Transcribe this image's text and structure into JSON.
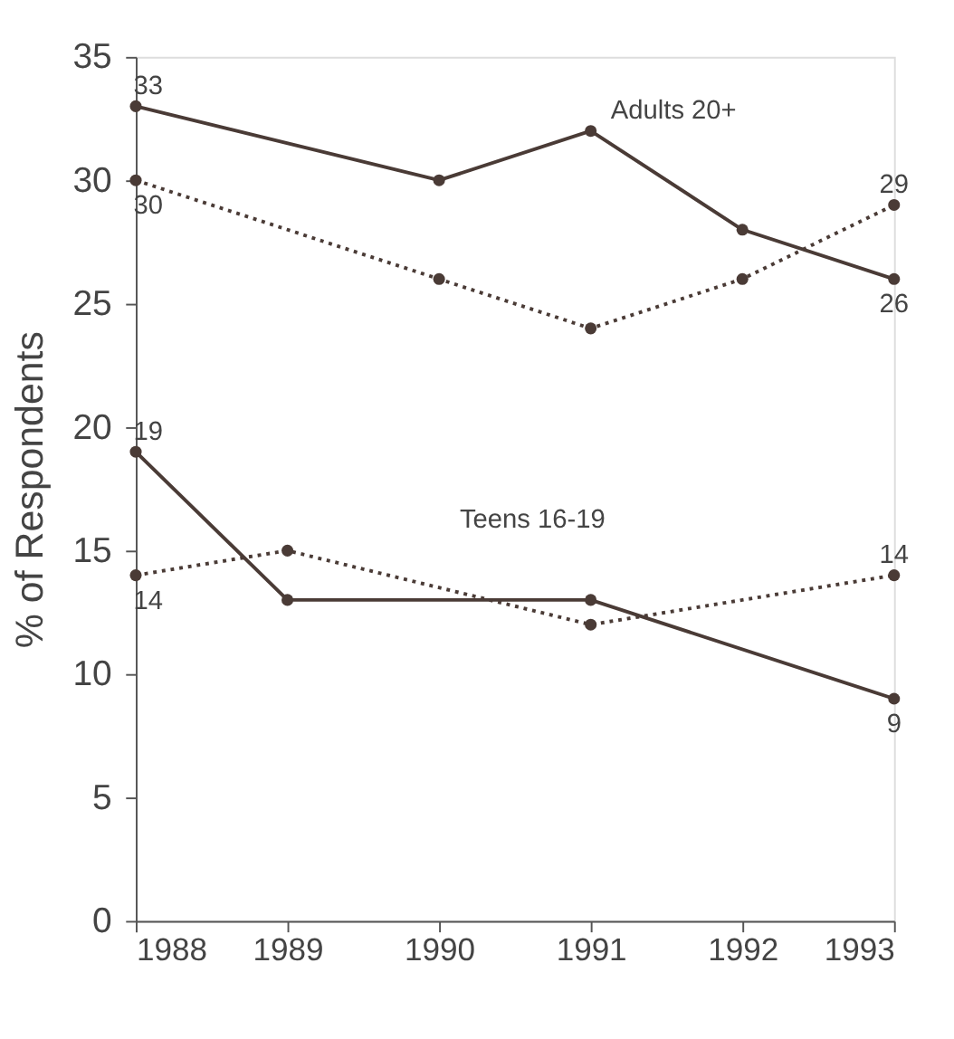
{
  "chart_data": {
    "type": "line",
    "ylabel": "% of Respondents",
    "xlim": [
      1988,
      1993
    ],
    "xticks": [
      1988,
      1989,
      1990,
      1991,
      1992,
      1993
    ],
    "ylim": [
      0,
      35
    ],
    "yticks": [
      0,
      5,
      10,
      15,
      20,
      25,
      30,
      35
    ],
    "grid": false,
    "marker": "circle",
    "series": [
      {
        "color": "#4a3b36",
        "line_style": "solid",
        "x": [
          1988,
          1990,
          1991,
          1992,
          1993
        ],
        "values": [
          33,
          30,
          32,
          28,
          26
        ],
        "value_labels": [
          "33",
          null,
          null,
          null,
          "26"
        ]
      },
      {
        "color": "#4a3b36",
        "line_style": "dotted",
        "x": [
          1988,
          1990,
          1991,
          1992,
          1993
        ],
        "values": [
          30,
          26,
          24,
          26,
          29
        ],
        "value_labels": [
          "30",
          null,
          null,
          null,
          "29"
        ]
      },
      {
        "color": "#4a3b36",
        "line_style": "solid",
        "x": [
          1988,
          1989,
          1991,
          1993
        ],
        "values": [
          19,
          13,
          13,
          9
        ],
        "value_labels": [
          "19",
          null,
          null,
          "9"
        ]
      },
      {
        "color": "#4a3b36",
        "line_style": "dotted",
        "x": [
          1988,
          1989,
          1991,
          1993
        ],
        "values": [
          14,
          15,
          12,
          14
        ],
        "value_labels": [
          "14",
          null,
          null,
          "14"
        ]
      }
    ],
    "annotations": [
      "Adults 20+",
      "Teens 16-19"
    ]
  }
}
